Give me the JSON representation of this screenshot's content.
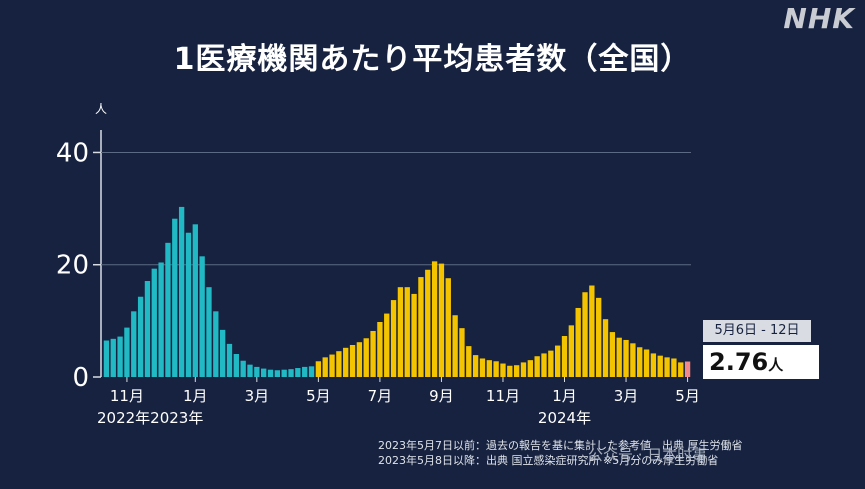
{
  "logo": "NHK",
  "watermark": "公众号 · 日本时事",
  "chart_data": {
    "type": "bar",
    "title": "1医療機関あたり平均患者数（全国）",
    "ylabel": "人",
    "ylim": [
      0,
      44
    ],
    "yticks": [
      "0",
      "20",
      "40"
    ],
    "grid": true,
    "xtick_labels": [
      {
        "label": "11月",
        "index": 3
      },
      {
        "label": "1月",
        "index": 13
      },
      {
        "label": "3月",
        "index": 22
      },
      {
        "label": "5月",
        "index": 31
      },
      {
        "label": "7月",
        "index": 40
      },
      {
        "label": "9月",
        "index": 49
      },
      {
        "label": "11月",
        "index": 58
      },
      {
        "label": "1月",
        "index": 67
      },
      {
        "label": "3月",
        "index": 76
      },
      {
        "label": "5月",
        "index": 85
      }
    ],
    "year_labels": [
      {
        "label": "2022年2023年",
        "index": 6
      },
      {
        "label": "2024年",
        "index": 67
      }
    ],
    "series": [
      {
        "color": "#20b9c4",
        "values": [
          6.5,
          6.8,
          7.2,
          8.8,
          11.7,
          14.3,
          17.1,
          19.3,
          20.4,
          23.9,
          28.2,
          30.3,
          25.7,
          27.2,
          21.5,
          16.0,
          11.7,
          8.4,
          5.9,
          4.1,
          2.9,
          2.2,
          1.8,
          1.5,
          1.3,
          1.2,
          1.3,
          1.4,
          1.6,
          1.8,
          1.9
        ]
      },
      {
        "color": "#f5c400",
        "values": [
          2.8,
          3.5,
          4.0,
          4.6,
          5.2,
          5.7,
          6.2,
          6.9,
          8.2,
          9.8,
          11.3,
          13.7,
          16.0,
          16.0,
          14.8,
          17.8,
          19.1,
          20.6,
          20.2,
          17.6,
          11.0,
          8.7,
          5.5,
          3.9,
          3.3,
          3.0,
          2.8,
          2.4,
          2.0,
          2.1,
          2.6,
          3.0,
          3.7,
          4.2,
          4.7,
          5.6,
          7.3,
          9.2,
          12.3,
          15.1,
          16.3,
          14.1,
          10.3,
          8.0,
          7.0,
          6.6,
          6.0,
          5.3,
          4.9,
          4.2,
          3.8,
          3.5,
          3.3,
          2.6
        ]
      },
      {
        "color": "#f08a8a",
        "values": [
          2.76
        ]
      }
    ]
  },
  "callout": {
    "period": "5月6日 - 12日",
    "value": "2.76",
    "unit": "人"
  },
  "notes": [
    "2023年5月7日以前：過去の報告を基に集計した参考値　出典 厚生労働省",
    "2023年5月8日以降：出典 国立感染症研究所 ※5月分のみ厚生労働省"
  ]
}
